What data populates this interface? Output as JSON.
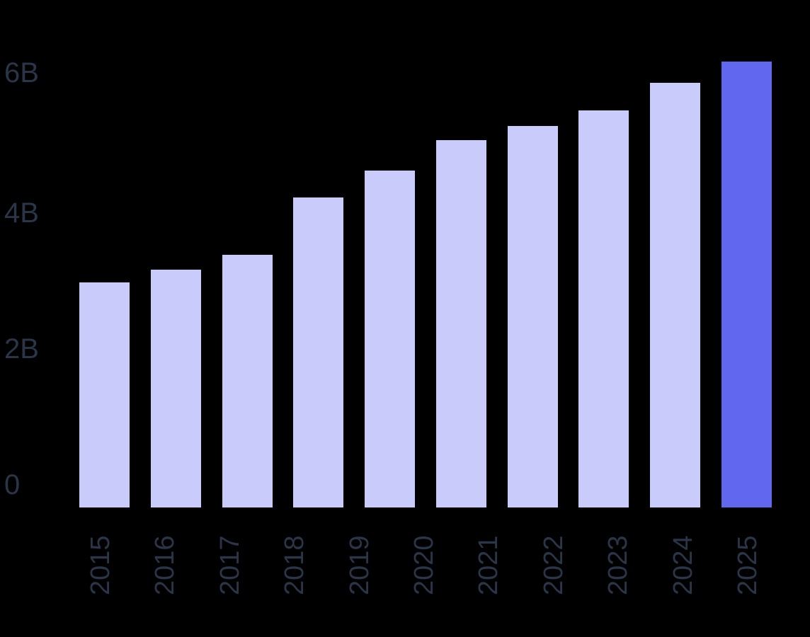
{
  "chart_data": {
    "type": "bar",
    "title": "",
    "xlabel": "",
    "ylabel": "",
    "unit": "billions",
    "x_tick_labels": [
      "2015",
      "2016",
      "2017",
      "2018",
      "2019",
      "2020",
      "2021",
      "2022",
      "2023",
      "2024",
      "2025"
    ],
    "y_tick_labels": [
      "0",
      "2B",
      "4B",
      "6B"
    ],
    "y_tick_values": [
      0,
      2,
      4,
      6
    ],
    "ylim": [
      0,
      6.6
    ],
    "values": [
      3.26,
      3.45,
      3.66,
      4.49,
      4.88,
      5.32,
      5.53,
      5.75,
      6.15,
      6.46
    ],
    "bar_count": 10,
    "highlighted_bar_index": 9,
    "note": "10 bars rendered beneath 11 year tick labels; last bar (2025) highlighted",
    "grid": false,
    "legend": "none",
    "colors": {
      "bar": "#c9cbfa",
      "bar_highlight": "#6267ef",
      "axis_text": "#2b3548",
      "background": "#000000"
    }
  }
}
